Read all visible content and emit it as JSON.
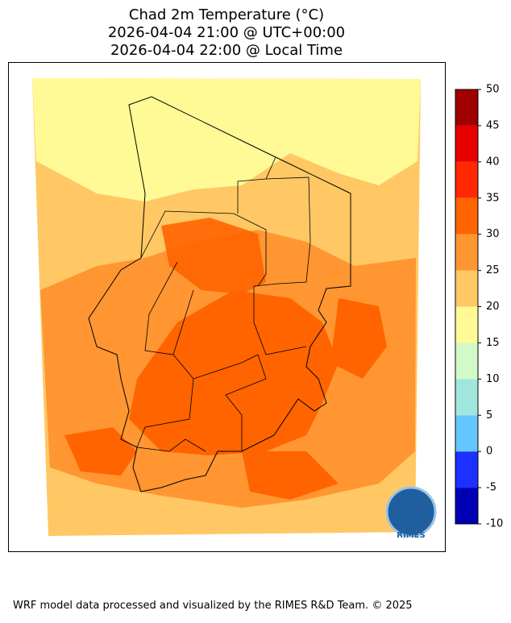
{
  "title": [
    "Chad 2m Temperature (°C)",
    "2026-04-04 21:00 @ UTC+00:00",
    "2026-04-04 22:00 @ Local Time"
  ],
  "colorbar": {
    "lim": [
      -10,
      50
    ],
    "ticks": [
      -10,
      -5,
      0,
      5,
      10,
      15,
      20,
      25,
      30,
      35,
      40,
      45,
      50
    ],
    "colors": [
      "#0000b4",
      "#1c30ff",
      "#64c8ff",
      "#a0e6dc",
      "#d2fac8",
      "#fffa96",
      "#ffc864",
      "#ff9632",
      "#ff6400",
      "#ff2800",
      "#e60000",
      "#a00000"
    ]
  },
  "logo": {
    "text": "RIMES"
  },
  "footer": "WRF model data processed and visualized by the RIMES R&D Team. © 2025"
}
